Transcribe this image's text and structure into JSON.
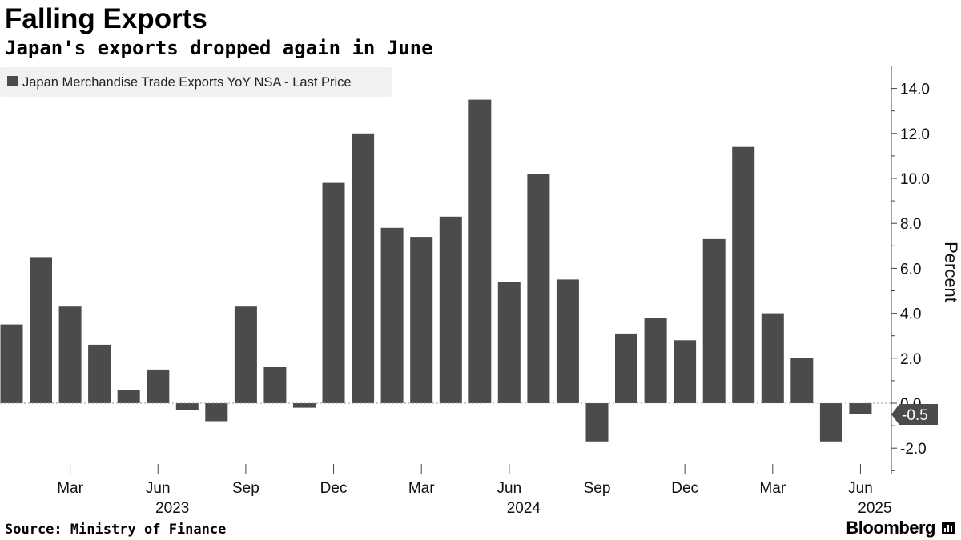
{
  "header": {
    "title": "Falling Exports",
    "subtitle": "Japan's exports dropped again in June"
  },
  "footer": {
    "source": "Source: Ministry of Finance",
    "brand": "Bloomberg"
  },
  "colors": {
    "bar": "#4b4b4b",
    "legend_bg": "#f1f1f1",
    "axis": "#444444",
    "gridline": "#d7d7d7",
    "callout_bg": "#4b4b4b",
    "callout_text": "#ffffff"
  },
  "chart_data": {
    "type": "bar",
    "title": "Falling Exports",
    "subtitle": "Japan's exports dropped again in June",
    "series": [
      {
        "name": "Japan Merchandise Trade Exports YoY NSA - Last Price",
        "values": [
          3.5,
          6.5,
          4.3,
          2.6,
          0.6,
          1.5,
          -0.3,
          -0.8,
          4.3,
          1.6,
          -0.2,
          9.8,
          12.0,
          7.8,
          7.4,
          8.3,
          13.5,
          5.4,
          10.2,
          5.5,
          -1.7,
          3.1,
          3.8,
          2.8,
          7.3,
          11.4,
          4.0,
          2.0,
          -1.7,
          -0.5
        ]
      }
    ],
    "categories": [
      "Jan 2023",
      "Feb 2023",
      "Mar 2023",
      "Apr 2023",
      "May 2023",
      "Jun 2023",
      "Jul 2023",
      "Aug 2023",
      "Sep 2023",
      "Oct 2023",
      "Nov 2023",
      "Dec 2023",
      "Jan 2024",
      "Feb 2024",
      "Mar 2024",
      "Apr 2024",
      "May 2024",
      "Jun 2024",
      "Jul 2024",
      "Aug 2024",
      "Sep 2024",
      "Oct 2024",
      "Nov 2024",
      "Dec 2024",
      "Jan 2025",
      "Feb 2025",
      "Mar 2025",
      "Apr 2025",
      "May 2025",
      "Jun 2025"
    ],
    "x_ticks": [
      {
        "index": 2,
        "label": "Mar"
      },
      {
        "index": 5,
        "label": "Jun"
      },
      {
        "index": 8,
        "label": "Sep"
      },
      {
        "index": 11,
        "label": "Dec"
      },
      {
        "index": 14,
        "label": "Mar"
      },
      {
        "index": 17,
        "label": "Jun"
      },
      {
        "index": 20,
        "label": "Sep"
      },
      {
        "index": 23,
        "label": "Dec"
      },
      {
        "index": 26,
        "label": "Mar"
      },
      {
        "index": 29,
        "label": "Jun"
      }
    ],
    "year_labels": [
      {
        "index": 5,
        "label": "2023"
      },
      {
        "index": 17,
        "label": "2024"
      },
      {
        "index": 29,
        "label": "2025"
      }
    ],
    "y_ticks": [
      "14.0",
      "12.0",
      "10.0",
      "8.0",
      "6.0",
      "4.0",
      "2.0",
      "0.0",
      "-2.0"
    ],
    "ylim": [
      -3.2,
      15.0
    ],
    "ylabel": "Percent",
    "xlabel": "",
    "legend": "Japan Merchandise Trade Exports YoY NSA - Last Price",
    "legend_position": "top-left",
    "last_value_label": "-0.5",
    "last_value": -0.5,
    "grid": false
  }
}
